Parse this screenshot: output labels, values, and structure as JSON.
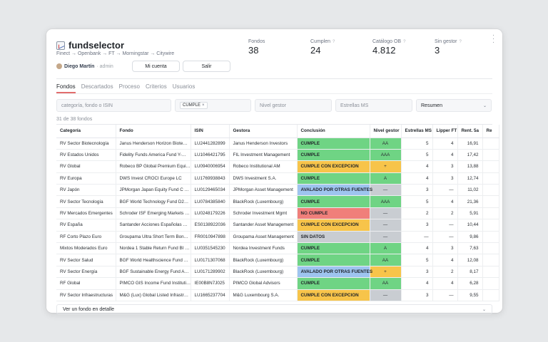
{
  "app": {
    "title": "fundselector",
    "subtitle": "Finect → Openbank → FT → Morningstar → Citywire"
  },
  "user": {
    "name": "Diego Martín",
    "role": "· admin"
  },
  "buttons": {
    "account": "Mi cuenta",
    "logout": "Salir"
  },
  "metrics": [
    {
      "label": "Fondos",
      "value": "38",
      "help": ""
    },
    {
      "label": "Cumplen",
      "value": "24",
      "help": "?"
    },
    {
      "label": "Catálogo OB",
      "value": "4.812",
      "help": "?"
    },
    {
      "label": "Sin gestor",
      "value": "3",
      "help": "?"
    }
  ],
  "tabs": [
    "Fondos",
    "Descartados",
    "Proceso",
    "Criterios",
    "Usuarios"
  ],
  "filters": {
    "search_placeholder": "categoría, fondo o ISIN",
    "chip": "CUMPLE",
    "chip_close": "×",
    "gestor_placeholder": "Nivel gestor",
    "stars_placeholder": "Estrellas MS",
    "view_value": "Resumen"
  },
  "count_text": "31 de 38 fondos",
  "columns": [
    "Categoría",
    "Fondo",
    "ISIN",
    "Gestora",
    "Conclusión",
    "Nivel gestor",
    "Estrellas MS",
    "Lipper FT",
    "Rent. 5a",
    "Re"
  ],
  "colors": {
    "CUMPLE": "#6fd484",
    "CUMPLE CON EXCEPCION": "#f7c44a",
    "AVALADO POR OTRAS FUENTES": "#9ec4ef",
    "NO CUMPLE": "#f07f7a",
    "SIN DATOS": "#c9cdd2",
    "level_AA": "#6fd484",
    "level_AAA": "#6fd484",
    "level_A": "#6fd484",
    "level_plus": "#f7c44a",
    "level_dash": "#c9cdd2"
  },
  "rows": [
    {
      "categoria": "RV Sector Biotecnología",
      "fondo": "Janus Henderson Horizon Biote…",
      "isin": "LU2441282899",
      "gestora": "Janus Henderson Investors",
      "conclusion": "CUMPLE",
      "nivel": "AA",
      "nivel_key": "level_AA",
      "estrellas": "5",
      "lipper": "4",
      "rent": "16,91"
    },
    {
      "categoria": "RV Estados Unidos",
      "fondo": "Fidelity Funds America Fund Y-…",
      "isin": "LU1046421795",
      "gestora": "FIL Investment Management",
      "conclusion": "CUMPLE",
      "nivel": "AAA",
      "nivel_key": "level_AAA",
      "estrellas": "5",
      "lipper": "4",
      "rent": "17,42"
    },
    {
      "categoria": "RV Global",
      "fondo": "Robeco BP Global Premium Equi…",
      "isin": "LU0940006954",
      "gestora": "Robeco Institutional AM",
      "conclusion": "CUMPLE CON EXCEPCION",
      "nivel": "+",
      "nivel_key": "level_plus",
      "estrellas": "4",
      "lipper": "3",
      "rent": "13,88"
    },
    {
      "categoria": "RV Europa",
      "fondo": "DWS Invest CROCI Europe LC",
      "isin": "LU1769938843",
      "gestora": "DWS Investment S.A.",
      "conclusion": "CUMPLE",
      "nivel": "A",
      "nivel_key": "level_A",
      "estrellas": "4",
      "lipper": "3",
      "rent": "12,74"
    },
    {
      "categoria": "RV Japón",
      "fondo": "JPMorgan Japan Equity Fund C …",
      "isin": "LU0129465034",
      "gestora": "JPMorgan Asset Management",
      "conclusion": "AVALADO POR OTRAS FUENTES",
      "nivel": "—",
      "nivel_key": "level_dash",
      "estrellas": "3",
      "lipper": "—",
      "rent": "11,02"
    },
    {
      "categoria": "RV Sector Tecnología",
      "fondo": "BGF World Technology Fund D2…",
      "isin": "LU0784385840",
      "gestora": "BlackRock (Luxembourg)",
      "conclusion": "CUMPLE",
      "nivel": "AAA",
      "nivel_key": "level_AAA",
      "estrellas": "5",
      "lipper": "4",
      "rent": "21,36"
    },
    {
      "categoria": "RV Mercados Emergentes",
      "fondo": "Schroder ISF Emerging Markets …",
      "isin": "LU0248179226",
      "gestora": "Schroder Investment Mgmt",
      "conclusion": "NO CUMPLE",
      "nivel": "—",
      "nivel_key": "level_dash",
      "estrellas": "2",
      "lipper": "2",
      "rent": "5,91"
    },
    {
      "categoria": "RV España",
      "fondo": "Santander Acciones Españolas …",
      "isin": "ES0138922036",
      "gestora": "Santander Asset Management",
      "conclusion": "CUMPLE CON EXCEPCION",
      "nivel": "—",
      "nivel_key": "level_dash",
      "estrellas": "3",
      "lipper": "—",
      "rent": "10,44"
    },
    {
      "categoria": "RF Corto Plazo Euro",
      "fondo": "Groupama Ultra Short Term Bon…",
      "isin": "FR0010947898",
      "gestora": "Groupama Asset Management",
      "conclusion": "SIN DATOS",
      "nivel": "—",
      "nivel_key": "level_dash",
      "estrellas": "—",
      "lipper": "—",
      "rent": "9,86"
    },
    {
      "categoria": "Mixtos Moderados Euro",
      "fondo": "Nordea 1 Stable Return Fund BI …",
      "isin": "LU0351545230",
      "gestora": "Nordea Investment Funds",
      "conclusion": "CUMPLE",
      "nivel": "A",
      "nivel_key": "level_A",
      "estrellas": "4",
      "lipper": "3",
      "rent": "7,63"
    },
    {
      "categoria": "RV Sector Salud",
      "fondo": "BGF World Healthscience Fund …",
      "isin": "LU0171307068",
      "gestora": "BlackRock (Luxembourg)",
      "conclusion": "CUMPLE",
      "nivel": "AA",
      "nivel_key": "level_AA",
      "estrellas": "5",
      "lipper": "4",
      "rent": "12,08"
    },
    {
      "categoria": "RV Sector Energía",
      "fondo": "BGF Sustainable Energy Fund A…",
      "isin": "LU0171289902",
      "gestora": "BlackRock (Luxembourg)",
      "conclusion": "AVALADO POR OTRAS FUENTES",
      "nivel": "+",
      "nivel_key": "level_plus",
      "estrellas": "3",
      "lipper": "2",
      "rent": "8,17"
    },
    {
      "categoria": "RF Global",
      "fondo": "PIMCO GIS Income Fund Instituti…",
      "isin": "IE00B8N7J025",
      "gestora": "PIMCO Global Advisors",
      "conclusion": "CUMPLE",
      "nivel": "AA",
      "nivel_key": "level_AA",
      "estrellas": "4",
      "lipper": "4",
      "rent": "6,28"
    },
    {
      "categoria": "RV Sector Infraestructuras",
      "fondo": "M&G (Lux) Global Listed Infrastr…",
      "isin": "LU1665237704",
      "gestora": "M&G Luxembourg S.A.",
      "conclusion": "CUMPLE CON EXCEPCION",
      "nivel": "—",
      "nivel_key": "level_dash",
      "estrellas": "3",
      "lipper": "—",
      "rent": "9,55"
    }
  ],
  "detail_bar": {
    "label": "Ver un fondo en detalle"
  }
}
